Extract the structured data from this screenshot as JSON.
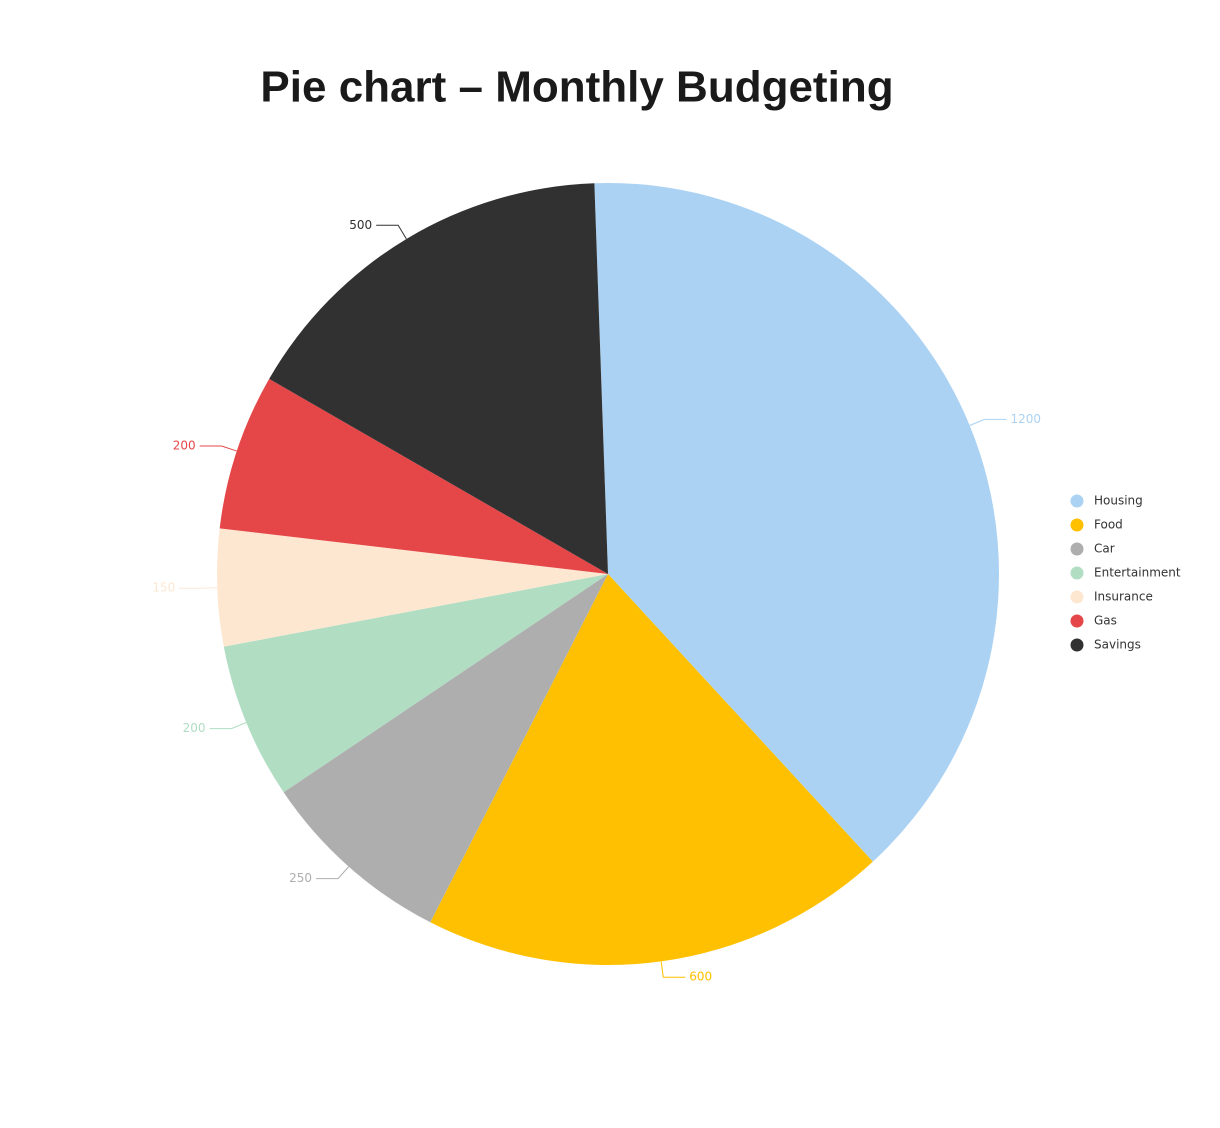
{
  "chart_data": {
    "type": "pie",
    "title": "Pie chart – Monthly Budgeting",
    "categories": [
      "Housing",
      "Food",
      "Car",
      "Entertainment",
      "Insurance",
      "Gas",
      "Savings"
    ],
    "values": [
      1200,
      600,
      250,
      200,
      150,
      200,
      500
    ],
    "colors": [
      "#abd2f3",
      "#fec000",
      "#aeaeae",
      "#b1ddc3",
      "#fee7d1",
      "#e54749",
      "#313131"
    ],
    "legend": "right"
  }
}
